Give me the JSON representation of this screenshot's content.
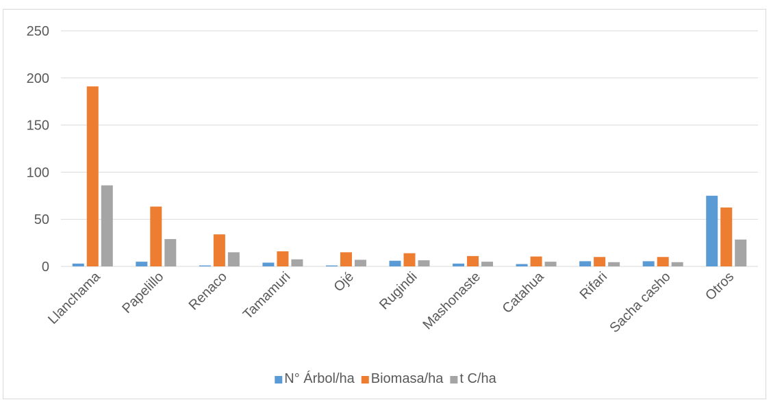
{
  "chart_data": {
    "type": "bar",
    "categories": [
      "Llanchama",
      "Papelillo",
      "Renaco",
      "Tamamuri",
      "Ojé",
      "Rugindi",
      "Mashonaste",
      "Catahua",
      "Rifari",
      "Sacha casho",
      "Otros"
    ],
    "series": [
      {
        "name": "N° Árbol/ha",
        "color": "#5b9bd5",
        "values": [
          3,
          5,
          1,
          4,
          1,
          6,
          3,
          2.5,
          5.5,
          5.5,
          75
        ]
      },
      {
        "name": "Biomasa/ha",
        "color": "#ed7d31",
        "values": [
          191,
          63.5,
          34,
          16,
          15,
          14,
          11,
          10.5,
          10,
          10,
          62.5
        ]
      },
      {
        "name": "t C/ha",
        "color": "#a5a5a5",
        "values": [
          86,
          29,
          15,
          7.5,
          7,
          6.5,
          5,
          5,
          4.5,
          4.5,
          28.5
        ]
      }
    ],
    "yticks": [
      0,
      50,
      100,
      150,
      200,
      250
    ],
    "ylim": [
      0,
      250
    ],
    "grid": true,
    "legend": "bottom"
  }
}
